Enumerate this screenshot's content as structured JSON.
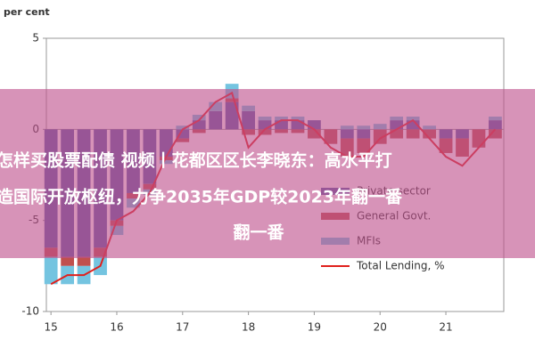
{
  "chart_data": {
    "type": "bar",
    "ylabel": "per cent",
    "x": [
      15.0,
      15.25,
      15.5,
      15.75,
      16.0,
      16.25,
      16.5,
      16.75,
      17.0,
      17.25,
      17.5,
      17.75,
      18.0,
      18.25,
      18.5,
      18.75,
      19.0,
      19.25,
      19.5,
      19.75,
      20.0,
      20.25,
      20.5,
      20.75,
      21.0,
      21.25,
      21.5,
      21.75
    ],
    "series": [
      {
        "name": "Private sector",
        "color": "#5b5ea6",
        "values": [
          -6.5,
          -7,
          -7,
          -6.5,
          -5,
          -3.5,
          -3,
          -1.5,
          -0.5,
          0.5,
          1,
          1.5,
          1,
          0.5,
          0.5,
          0.5,
          0.5,
          0,
          -0.5,
          -0.5,
          0,
          0.5,
          0.5,
          0,
          -0.5,
          -0.5,
          0,
          0.5
        ]
      },
      {
        "name": "General Govt.",
        "color": "#c0504d",
        "values": [
          -0.5,
          -0.5,
          -0.5,
          -0.5,
          -0.3,
          -0.3,
          -0.3,
          -0.2,
          -0.2,
          -0.2,
          0,
          0.2,
          -0.3,
          -0.3,
          -0.2,
          -0.2,
          -0.5,
          -0.8,
          -1,
          -0.8,
          -0.8,
          -0.5,
          -0.5,
          -0.5,
          -0.8,
          -1,
          -1,
          -0.5
        ]
      },
      {
        "name": "MFIs",
        "color": "#74c4e0",
        "values": [
          -1.5,
          -1,
          -1,
          -1,
          -0.5,
          -0.5,
          -0.3,
          -0.2,
          0.2,
          0.3,
          0.5,
          0.8,
          0.3,
          0.2,
          0.2,
          0.2,
          0,
          0,
          0.2,
          0.2,
          0.3,
          0.2,
          0.2,
          0.2,
          0,
          0,
          0,
          0.2
        ]
      },
      {
        "name": "Total Lending, %",
        "color": "#e0201c",
        "line": true,
        "values": [
          -8.5,
          -8,
          -8,
          -7.5,
          -5,
          -4.5,
          -3.5,
          -1.5,
          0,
          0.5,
          1.5,
          2,
          -1,
          0,
          0.5,
          0.5,
          0,
          -1,
          -1.5,
          -1.5,
          -0.5,
          0,
          0.5,
          -0.5,
          -1.5,
          -2,
          -1,
          0
        ]
      }
    ],
    "xlim": [
      14.93,
      21.88
    ],
    "xticks": [
      15,
      16,
      17,
      18,
      19,
      20,
      21
    ],
    "ylim": [
      -10,
      5
    ],
    "yticks": [
      5,
      0,
      -5,
      -10
    ]
  },
  "banner": {
    "lines": [
      "怎样买股票配债 视频丨花都区区长李晓东：高水平打",
      "造国际开放枢纽，力争2035年GDP较2023年翻一番",
      "翻一番"
    ]
  }
}
